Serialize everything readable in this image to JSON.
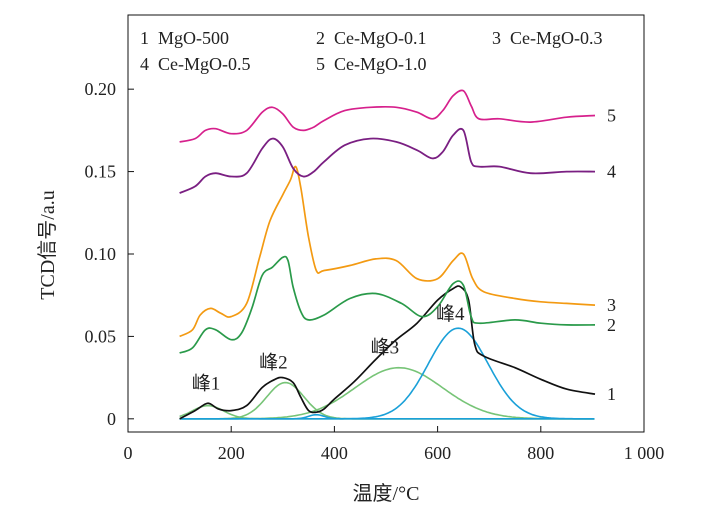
{
  "chart_data": {
    "type": "line",
    "xlabel": "温度/°C",
    "ylabel": "TCD信号/a.u",
    "xlim": [
      0,
      1000
    ],
    "ylim": [
      -0.008,
      0.245
    ],
    "x_ticks": [
      {
        "value": 0,
        "label": "0"
      },
      {
        "value": 200,
        "label": "200"
      },
      {
        "value": 400,
        "label": "400"
      },
      {
        "value": 600,
        "label": "600"
      },
      {
        "value": 800,
        "label": "800"
      },
      {
        "value": 1000,
        "label": "1 000"
      }
    ],
    "y_ticks": [
      {
        "value": 0,
        "label": "0"
      },
      {
        "value": 0.05,
        "label": "0.05"
      },
      {
        "value": 0.1,
        "label": "0.10"
      },
      {
        "value": 0.15,
        "label": "0.15"
      },
      {
        "value": 0.2,
        "label": "0.20"
      }
    ],
    "legend": [
      "1  MgO-500",
      "2  Ce-MgO-0.1",
      "3  Ce-MgO-0.3",
      "4  Ce-MgO-0.5",
      "5  Ce-MgO-1.0"
    ],
    "legend_position": "top",
    "series": [
      {
        "label": "1",
        "color": "#111111",
        "x": [
          100,
          130,
          150,
          160,
          175,
          200,
          230,
          260,
          285,
          300,
          320,
          335,
          350,
          365,
          380,
          400,
          440,
          480,
          520,
          560,
          600,
          630,
          645,
          660,
          672,
          690,
          750,
          800,
          850,
          905
        ],
        "y": [
          0,
          0.005,
          0.009,
          0.009,
          0.006,
          0.005,
          0.008,
          0.019,
          0.024,
          0.025,
          0.022,
          0.013,
          0.005,
          0.004,
          0.006,
          0.012,
          0.023,
          0.036,
          0.048,
          0.058,
          0.072,
          0.079,
          0.08,
          0.072,
          0.045,
          0.038,
          0.031,
          0.024,
          0.018,
          0.015
        ]
      },
      {
        "label": "2",
        "color": "#2a9a4a",
        "x": [
          100,
          125,
          150,
          170,
          200,
          220,
          240,
          260,
          280,
          300,
          310,
          320,
          335,
          350,
          380,
          430,
          480,
          530,
          570,
          600,
          630,
          650,
          665,
          680,
          750,
          800,
          850,
          905
        ],
        "y": [
          0.04,
          0.043,
          0.054,
          0.054,
          0.048,
          0.052,
          0.067,
          0.087,
          0.092,
          0.098,
          0.096,
          0.08,
          0.065,
          0.06,
          0.063,
          0.073,
          0.076,
          0.07,
          0.062,
          0.068,
          0.082,
          0.081,
          0.062,
          0.058,
          0.06,
          0.058,
          0.057,
          0.057
        ]
      },
      {
        "label": "3",
        "color": "#f39a12",
        "x": [
          100,
          125,
          140,
          160,
          180,
          200,
          230,
          255,
          275,
          300,
          315,
          325,
          335,
          350,
          365,
          380,
          430,
          480,
          520,
          560,
          600,
          630,
          650,
          668,
          690,
          750,
          800,
          850,
          905
        ],
        "y": [
          0.05,
          0.054,
          0.063,
          0.067,
          0.064,
          0.062,
          0.07,
          0.098,
          0.12,
          0.136,
          0.145,
          0.153,
          0.14,
          0.11,
          0.09,
          0.09,
          0.093,
          0.097,
          0.096,
          0.085,
          0.085,
          0.096,
          0.1,
          0.085,
          0.077,
          0.073,
          0.071,
          0.07,
          0.069
        ]
      },
      {
        "label": "4",
        "color": "#7a1f82",
        "x": [
          100,
          130,
          150,
          170,
          200,
          230,
          260,
          280,
          300,
          320,
          340,
          360,
          380,
          420,
          470,
          520,
          560,
          590,
          610,
          630,
          650,
          665,
          680,
          720,
          780,
          850,
          905
        ],
        "y": [
          0.137,
          0.141,
          0.147,
          0.149,
          0.147,
          0.149,
          0.164,
          0.17,
          0.165,
          0.152,
          0.147,
          0.15,
          0.156,
          0.166,
          0.17,
          0.168,
          0.163,
          0.158,
          0.162,
          0.172,
          0.175,
          0.156,
          0.153,
          0.153,
          0.149,
          0.15,
          0.15
        ],
        "linewidth": 1.8
      },
      {
        "label": "5",
        "color": "#d6208c",
        "x": [
          100,
          130,
          150,
          170,
          200,
          230,
          260,
          280,
          300,
          320,
          340,
          360,
          380,
          420,
          470,
          520,
          560,
          590,
          610,
          630,
          650,
          665,
          680,
          720,
          780,
          850,
          905
        ],
        "y": [
          0.168,
          0.17,
          0.175,
          0.176,
          0.173,
          0.175,
          0.186,
          0.189,
          0.185,
          0.177,
          0.175,
          0.177,
          0.181,
          0.187,
          0.189,
          0.189,
          0.186,
          0.182,
          0.187,
          0.196,
          0.199,
          0.19,
          0.182,
          0.182,
          0.18,
          0.183,
          0.184
        ]
      }
    ],
    "fitted_peaks": [
      {
        "label": "峰1",
        "color": "#77c477",
        "center": 155,
        "height": 0.008,
        "width": 30
      },
      {
        "label": "峰2",
        "color": "#77c477",
        "center": 305,
        "height": 0.022,
        "width": 36
      },
      {
        "label": "峰3",
        "color": "#77c477",
        "center": 525,
        "height": 0.031,
        "width": 85
      },
      {
        "label": "峰4",
        "color": "#1aa0d8",
        "center": 640,
        "height": 0.055,
        "width": 58
      },
      {
        "label": "",
        "color": "#1aa0d8",
        "center": 365,
        "height": 0.0025,
        "width": 15
      }
    ],
    "grid": false
  }
}
